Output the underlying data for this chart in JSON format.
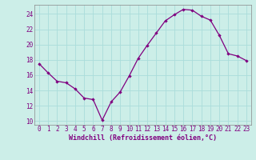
{
  "x": [
    0,
    1,
    2,
    3,
    4,
    5,
    6,
    7,
    8,
    9,
    10,
    11,
    12,
    13,
    14,
    15,
    16,
    17,
    18,
    19,
    20,
    21,
    22,
    23
  ],
  "y": [
    17.5,
    16.3,
    15.2,
    15.0,
    14.2,
    13.0,
    12.8,
    10.1,
    12.5,
    13.8,
    15.9,
    18.2,
    19.9,
    21.5,
    23.1,
    23.9,
    24.6,
    24.5,
    23.7,
    23.2,
    21.2,
    18.8,
    18.5,
    17.9
  ],
  "line_color": "#800080",
  "bg_color": "#cceee8",
  "xlabel": "Windchill (Refroidissement éolien,°C)",
  "ylim": [
    9.5,
    25.2
  ],
  "xlim": [
    -0.5,
    23.5
  ],
  "yticks": [
    10,
    12,
    14,
    16,
    18,
    20,
    22,
    24
  ],
  "xticks": [
    0,
    1,
    2,
    3,
    4,
    5,
    6,
    7,
    8,
    9,
    10,
    11,
    12,
    13,
    14,
    15,
    16,
    17,
    18,
    19,
    20,
    21,
    22,
    23
  ],
  "grid_color": "#aaddda",
  "font_color": "#800080",
  "tick_fontsize": 5.5,
  "xlabel_fontsize": 6.0
}
